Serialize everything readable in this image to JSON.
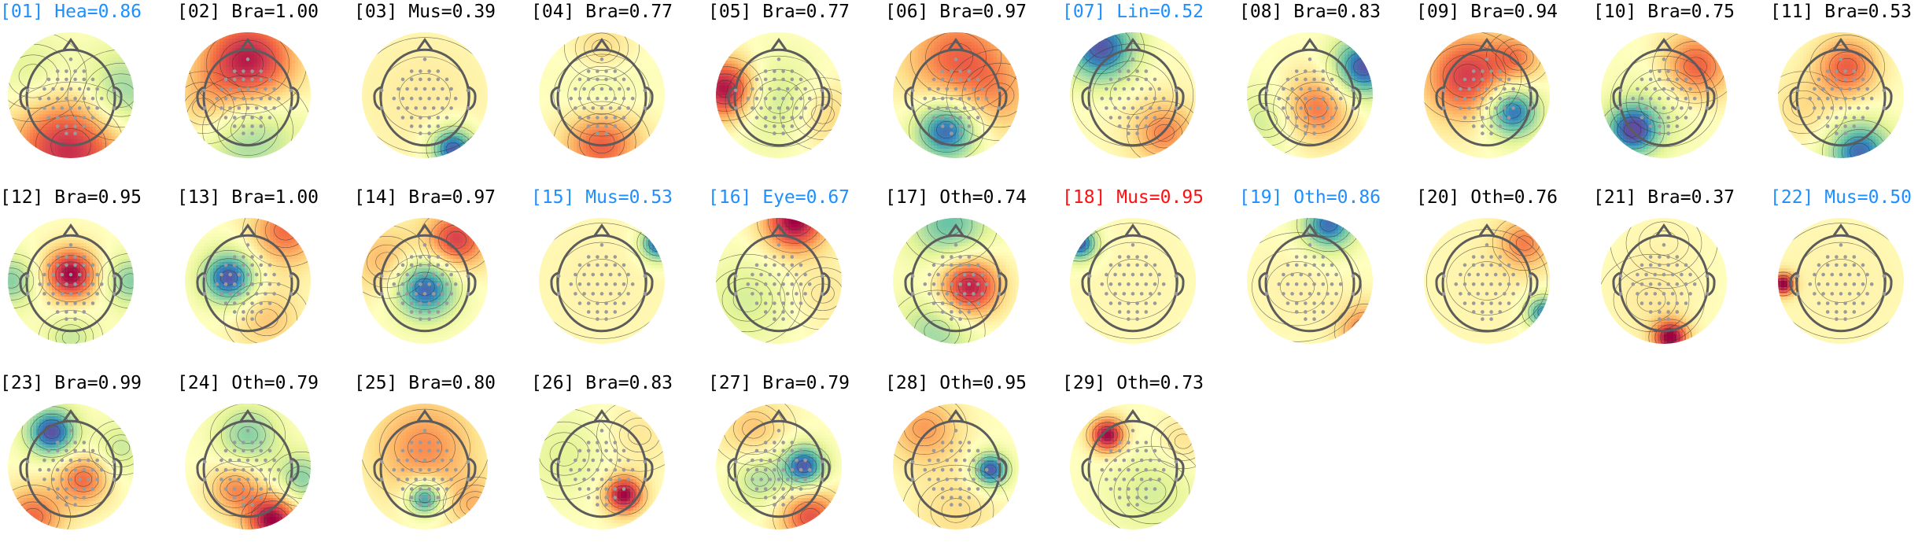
{
  "colors": {
    "default_label": "#000000",
    "highlight_label": "#1f8fff",
    "alert_label": "#ff1010",
    "head_outline": "#5c5c5c",
    "sensor": "#9a9a9a",
    "contour": "#333333",
    "colormap": [
      "#5e4fa2",
      "#3288bd",
      "#66c2a5",
      "#abdda4",
      "#e6f598",
      "#ffffbf",
      "#fee08b",
      "#fdae61",
      "#f46d43",
      "#d53e4f",
      "#9e0142"
    ]
  },
  "components": [
    {
      "label": "[01] Hea=0.86",
      "label_color": "highlight",
      "blobs": [
        [
          0.0,
          0.8,
          0.7,
          0.9
        ],
        [
          0.8,
          0.0,
          0.5,
          -0.6
        ],
        [
          -0.6,
          -0.3,
          0.5,
          -0.3
        ]
      ]
    },
    {
      "label": "[02] Bra=1.00",
      "label_color": "default",
      "blobs": [
        [
          0.0,
          -0.5,
          0.55,
          1.0
        ],
        [
          0.0,
          0.55,
          0.6,
          -0.5
        ],
        [
          -0.7,
          0.2,
          0.4,
          0.3
        ]
      ]
    },
    {
      "label": "[03] Mus=0.39",
      "label_color": "default",
      "blobs": [
        [
          0.45,
          0.85,
          0.25,
          -1.0
        ],
        [
          0.0,
          0.0,
          0.9,
          0.12
        ]
      ]
    },
    {
      "label": "[04] Bra=0.77",
      "label_color": "default",
      "blobs": [
        [
          0.0,
          0.75,
          0.45,
          0.7
        ],
        [
          0.0,
          0.0,
          0.45,
          -0.25
        ],
        [
          0.0,
          -0.75,
          0.35,
          0.25
        ]
      ]
    },
    {
      "label": "[05] Bra=0.77",
      "label_color": "default",
      "blobs": [
        [
          -0.85,
          -0.1,
          0.35,
          1.0
        ],
        [
          0.0,
          0.1,
          0.5,
          -0.35
        ],
        [
          0.7,
          0.3,
          0.4,
          0.3
        ]
      ]
    },
    {
      "label": "[06] Bra=0.97",
      "label_color": "default",
      "blobs": [
        [
          -0.15,
          0.55,
          0.35,
          -1.0
        ],
        [
          0.0,
          -0.6,
          0.6,
          0.6
        ],
        [
          0.7,
          0.0,
          0.5,
          0.3
        ]
      ]
    },
    {
      "label": "[07] Lin=0.52",
      "label_color": "highlight",
      "blobs": [
        [
          -0.5,
          -0.75,
          0.4,
          -1.0
        ],
        [
          0.5,
          0.6,
          0.35,
          0.5
        ],
        [
          0.0,
          0.0,
          0.8,
          0.05
        ]
      ]
    },
    {
      "label": "[08] Bra=0.83",
      "label_color": "default",
      "blobs": [
        [
          0.85,
          -0.45,
          0.35,
          -1.0
        ],
        [
          0.1,
          0.2,
          0.4,
          0.6
        ],
        [
          -0.7,
          0.4,
          0.4,
          -0.3
        ]
      ]
    },
    {
      "label": "[09] Bra=0.94",
      "label_color": "default",
      "blobs": [
        [
          0.4,
          0.25,
          0.3,
          -1.0
        ],
        [
          -0.3,
          -0.3,
          0.5,
          0.8
        ],
        [
          0.5,
          -0.6,
          0.3,
          0.4
        ]
      ]
    },
    {
      "label": "[10] Bra=0.75",
      "label_color": "default",
      "blobs": [
        [
          -0.5,
          0.55,
          0.3,
          -1.0
        ],
        [
          0.5,
          -0.45,
          0.4,
          0.7
        ],
        [
          0.0,
          0.1,
          0.5,
          -0.2
        ]
      ]
    },
    {
      "label": "[11] Bra=0.53",
      "label_color": "default",
      "blobs": [
        [
          0.1,
          -0.45,
          0.35,
          0.65
        ],
        [
          0.3,
          0.9,
          0.35,
          -0.9
        ],
        [
          -0.6,
          0.2,
          0.4,
          0.2
        ]
      ]
    },
    {
      "label": "[12] Bra=0.95",
      "label_color": "default",
      "blobs": [
        [
          0.0,
          -0.1,
          0.3,
          1.0
        ],
        [
          -0.95,
          0.0,
          0.3,
          -0.5
        ],
        [
          0.95,
          0.0,
          0.3,
          -0.5
        ],
        [
          0.0,
          0.9,
          0.3,
          -0.3
        ]
      ]
    },
    {
      "label": "[13] Bra=1.00",
      "label_color": "default",
      "blobs": [
        [
          -0.3,
          -0.05,
          0.3,
          -1.0
        ],
        [
          0.6,
          -0.8,
          0.4,
          0.6
        ],
        [
          0.3,
          0.6,
          0.4,
          0.3
        ]
      ]
    },
    {
      "label": "[14] Bra=0.97",
      "label_color": "default",
      "blobs": [
        [
          0.0,
          0.1,
          0.35,
          -1.0
        ],
        [
          0.5,
          -0.65,
          0.35,
          0.8
        ],
        [
          -0.6,
          -0.3,
          0.4,
          0.4
        ]
      ]
    },
    {
      "label": "[15] Mus=0.53",
      "label_color": "highlight",
      "blobs": [
        [
          0.9,
          -0.6,
          0.2,
          -1.0
        ],
        [
          0.0,
          0.0,
          0.9,
          0.08
        ]
      ]
    },
    {
      "label": "[16] Eye=0.67",
      "label_color": "highlight",
      "blobs": [
        [
          0.25,
          -0.95,
          0.35,
          1.0
        ],
        [
          -0.5,
          0.3,
          0.5,
          -0.25
        ],
        [
          0.7,
          0.2,
          0.4,
          0.15
        ]
      ]
    },
    {
      "label": "[17] Oth=0.74",
      "label_color": "default",
      "blobs": [
        [
          0.2,
          0.1,
          0.35,
          1.0
        ],
        [
          -0.1,
          -0.9,
          0.45,
          -0.6
        ],
        [
          -0.3,
          0.8,
          0.45,
          -0.45
        ]
      ]
    },
    {
      "label": "[18] Mus=0.95",
      "label_color": "alert",
      "blobs": [
        [
          -0.85,
          -0.6,
          0.2,
          -1.0
        ],
        [
          0.0,
          0.0,
          0.9,
          0.06
        ]
      ]
    },
    {
      "label": "[19] Oth=0.86",
      "label_color": "highlight",
      "blobs": [
        [
          0.3,
          -0.9,
          0.3,
          -0.9
        ],
        [
          0.9,
          0.8,
          0.3,
          0.6
        ],
        [
          -0.2,
          0.1,
          0.6,
          0.08
        ]
      ]
    },
    {
      "label": "[20] Oth=0.76",
      "label_color": "default",
      "blobs": [
        [
          0.9,
          0.5,
          0.2,
          -0.8
        ],
        [
          0.6,
          -0.6,
          0.3,
          0.5
        ],
        [
          0.0,
          0.0,
          0.8,
          0.08
        ]
      ]
    },
    {
      "label": "[21] Bra=0.37",
      "label_color": "default",
      "blobs": [
        [
          0.1,
          0.9,
          0.2,
          1.0
        ],
        [
          -0.2,
          0.3,
          0.5,
          0.12
        ],
        [
          0.0,
          -0.6,
          0.5,
          0.05
        ]
      ]
    },
    {
      "label": "[22] Mus=0.50",
      "label_color": "highlight",
      "blobs": [
        [
          -0.92,
          0.05,
          0.13,
          1.0
        ],
        [
          0.0,
          0.0,
          0.9,
          0.08
        ]
      ]
    },
    {
      "label": "[23] Bra=0.99",
      "label_color": "default",
      "blobs": [
        [
          -0.3,
          -0.55,
          0.28,
          -1.0
        ],
        [
          0.2,
          0.2,
          0.3,
          0.6
        ],
        [
          -0.6,
          0.8,
          0.35,
          0.6
        ],
        [
          0.8,
          -0.3,
          0.3,
          -0.3
        ]
      ]
    },
    {
      "label": "[24] Oth=0.79",
      "label_color": "default",
      "blobs": [
        [
          0.4,
          0.85,
          0.3,
          1.0
        ],
        [
          0.0,
          -0.5,
          0.35,
          -0.5
        ],
        [
          -0.2,
          0.35,
          0.3,
          0.5
        ],
        [
          0.85,
          0.2,
          0.3,
          -0.5
        ]
      ]
    },
    {
      "label": "[25] Bra=0.80",
      "label_color": "default",
      "blobs": [
        [
          0.0,
          0.5,
          0.2,
          -0.9
        ],
        [
          0.0,
          -0.3,
          0.6,
          0.5
        ],
        [
          0.8,
          0.6,
          0.3,
          0.3
        ]
      ]
    },
    {
      "label": "[26] Bra=0.83",
      "label_color": "default",
      "blobs": [
        [
          0.35,
          0.45,
          0.22,
          1.0
        ],
        [
          -0.6,
          -0.2,
          0.5,
          -0.2
        ],
        [
          0.6,
          -0.5,
          0.4,
          0.15
        ]
      ]
    },
    {
      "label": "[27] Bra=0.79",
      "label_color": "default",
      "blobs": [
        [
          0.4,
          0.0,
          0.25,
          -1.0
        ],
        [
          0.5,
          0.8,
          0.35,
          0.7
        ],
        [
          -0.4,
          -0.6,
          0.4,
          0.3
        ],
        [
          -0.3,
          0.2,
          0.3,
          -0.4
        ]
      ]
    },
    {
      "label": "[28] Oth=0.95",
      "label_color": "default",
      "blobs": [
        [
          0.55,
          0.05,
          0.2,
          -1.0
        ],
        [
          -0.5,
          -0.6,
          0.4,
          0.45
        ],
        [
          0.0,
          0.7,
          0.5,
          0.2
        ]
      ]
    },
    {
      "label": "[29] Oth=0.73",
      "label_color": "default",
      "blobs": [
        [
          -0.4,
          -0.5,
          0.2,
          1.0
        ],
        [
          0.3,
          0.4,
          0.5,
          -0.25
        ],
        [
          0.8,
          -0.4,
          0.3,
          0.2
        ]
      ]
    }
  ]
}
